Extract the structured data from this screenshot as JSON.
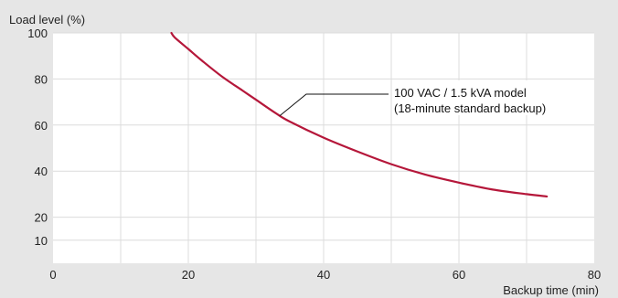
{
  "chart_data": {
    "type": "line",
    "xlabel": "Backup time (min)",
    "ylabel": "Load level (%)",
    "xlim": [
      0,
      80
    ],
    "ylim": [
      0,
      100
    ],
    "xticks": [
      "0",
      "20",
      "40",
      "60",
      "80"
    ],
    "yticks": [
      "10",
      "20",
      "40",
      "60",
      "80",
      "100"
    ],
    "ytick_values": [
      10,
      20,
      40,
      60,
      80,
      100
    ],
    "xtick_values": [
      0,
      20,
      40,
      60,
      80
    ],
    "grid": true,
    "series": [
      {
        "name": "100 VAC / 1.5 kVA model (18-minute standard backup)",
        "color": "#b5173a",
        "x": [
          17.5,
          18,
          20,
          22,
          25,
          28,
          30,
          33,
          35,
          40,
          45,
          50,
          55,
          60,
          65,
          70,
          73
        ],
        "y": [
          100,
          98,
          93,
          88,
          81,
          75,
          71,
          65,
          61.5,
          54.5,
          48.5,
          43,
          38.5,
          35,
          32,
          30,
          29
        ]
      }
    ],
    "annotations": [
      {
        "lines": [
          "100 VAC / 1.5 kVA model",
          "(18-minute standard backup)"
        ],
        "point": [
          33.5,
          64
        ]
      }
    ]
  }
}
